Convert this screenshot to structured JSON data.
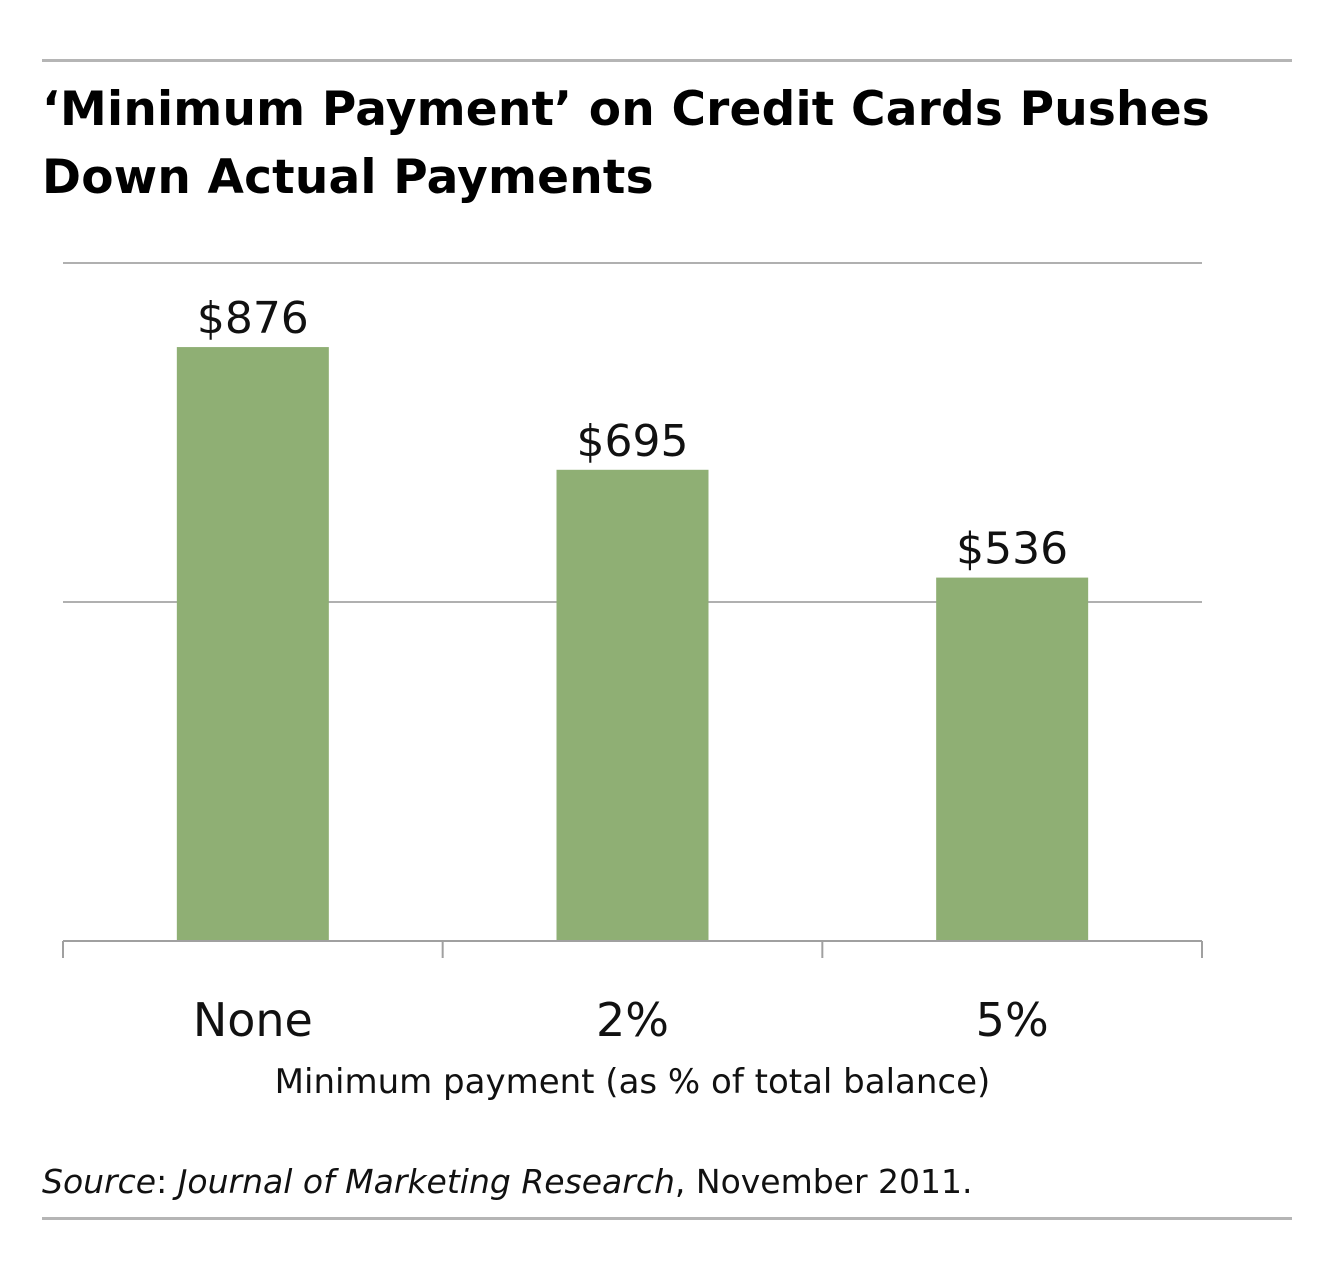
{
  "title_lines": [
    "‘Minimum Payment’ on Credit Cards Pushes",
    "Down Actual Payments"
  ],
  "source": {
    "label": "Source",
    "separator": ": ",
    "publication": "Journal of Marketing Research",
    "date": ", November 2011."
  },
  "colors": {
    "bar": "#8faf74",
    "gridline": "#b0b0b0",
    "axis": "#a0a0a0",
    "rule": "#b5b5b5"
  },
  "chart_data": {
    "type": "bar",
    "title": "‘Minimum Payment’ on Credit Cards Pushes Down Actual Payments",
    "categories": [
      "None",
      "2%",
      "5%"
    ],
    "values": [
      876,
      695,
      536
    ],
    "data_labels": [
      "$876",
      "$695",
      "$536"
    ],
    "xlabel": "Minimum payment (as % of total balance)",
    "ylabel": "",
    "ylim": [
      0,
      1000
    ],
    "gridlines": [
      500,
      1000
    ],
    "grid": true,
    "legend": "none"
  }
}
